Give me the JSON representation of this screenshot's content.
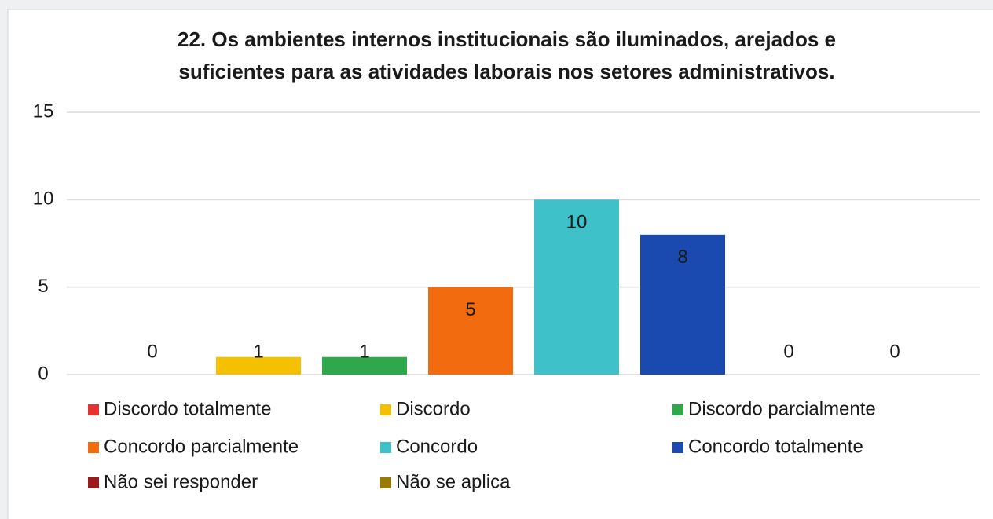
{
  "chart_data": {
    "type": "bar",
    "title": [
      "22. Os ambientes internos institucionais são iluminados, arejados e",
      "suficientes para as atividades laborais nos setores administrativos."
    ],
    "categories": [
      null
    ],
    "series": [
      {
        "name": "Discordo totalmente",
        "color": "#e8302f",
        "values": [
          0
        ]
      },
      {
        "name": "Discordo",
        "color": "#f5c000",
        "values": [
          1
        ]
      },
      {
        "name": "Discordo parcialmente",
        "color": "#2ea84a",
        "values": [
          1
        ]
      },
      {
        "name": "Concordo parcialmente",
        "color": "#f26b0f",
        "values": [
          5
        ]
      },
      {
        "name": "Concordo",
        "color": "#3ec1c8",
        "values": [
          10
        ]
      },
      {
        "name": "Concordo totalmente",
        "color": "#1a49b0",
        "values": [
          8
        ]
      },
      {
        "name": "Não sei responder",
        "color": "#9b1b1b",
        "values": [
          0
        ]
      },
      {
        "name": "Não se aplica",
        "color": "#9a7a00",
        "values": [
          0
        ]
      }
    ],
    "ylim": [
      0,
      15
    ],
    "yticks": [
      0,
      5,
      10,
      15
    ],
    "grid": true,
    "legend": "bottom"
  }
}
